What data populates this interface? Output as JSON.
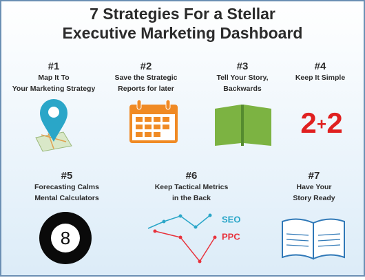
{
  "title": [
    "7 Strategies For a Stellar",
    "Executive Marketing Dashboard"
  ],
  "items": [
    {
      "number": "#1",
      "lines": [
        "Map It To",
        "Your Marketing Strategy"
      ]
    },
    {
      "number": "#2",
      "lines": [
        "Save the Strategic",
        "Reports for later"
      ]
    },
    {
      "number": "#3",
      "lines": [
        "Tell Your Story,",
        "Backwards"
      ]
    },
    {
      "number": "#4",
      "lines": [
        "Keep It Simple"
      ]
    },
    {
      "number": "#5",
      "lines": [
        "Forecasting Calms",
        "Mental Calculators"
      ]
    },
    {
      "number": "#6",
      "lines": [
        "Keep Tactical Metrics",
        "in the Back"
      ]
    },
    {
      "number": "#7",
      "lines": [
        "Have Your",
        "Story Ready"
      ]
    }
  ],
  "icon_text": {
    "sum": [
      "2",
      "+",
      "2"
    ],
    "ball": "8",
    "seo": "SEO",
    "ppc": "PPC"
  }
}
